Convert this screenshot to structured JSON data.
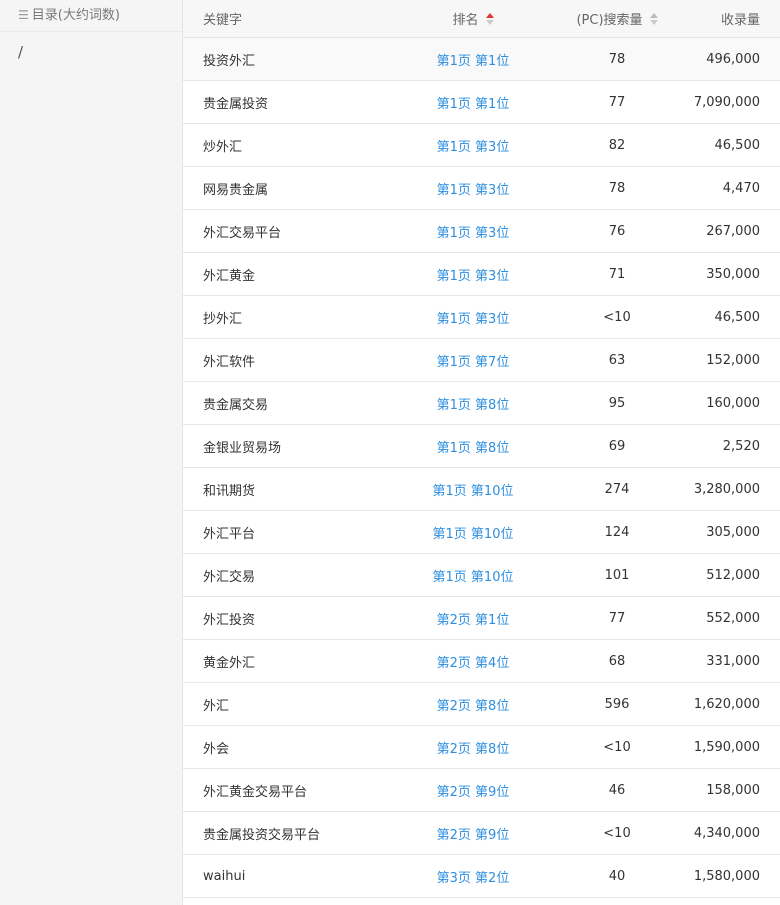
{
  "sidebar": {
    "title": "目录(大约词数)",
    "icon": "list-icon",
    "items": [
      {
        "label": "/"
      }
    ]
  },
  "table": {
    "headers": {
      "keyword": "关键字",
      "rank": "排名",
      "search": "(PC)搜索量",
      "indexed": "收录量"
    },
    "sort": {
      "column": "rank",
      "direction": "asc",
      "active_color": "#e33333"
    },
    "rows": [
      {
        "keyword": "投资外汇",
        "rank": "第1页 第1位",
        "search": "78",
        "indexed": "496,000"
      },
      {
        "keyword": "贵金属投资",
        "rank": "第1页 第1位",
        "search": "77",
        "indexed": "7,090,000"
      },
      {
        "keyword": "炒外汇",
        "rank": "第1页 第3位",
        "search": "82",
        "indexed": "46,500"
      },
      {
        "keyword": "网易贵金属",
        "rank": "第1页 第3位",
        "search": "78",
        "indexed": "4,470"
      },
      {
        "keyword": "外汇交易平台",
        "rank": "第1页 第3位",
        "search": "76",
        "indexed": "267,000"
      },
      {
        "keyword": "外汇黄金",
        "rank": "第1页 第3位",
        "search": "71",
        "indexed": "350,000"
      },
      {
        "keyword": "抄外汇",
        "rank": "第1页 第3位",
        "search": "<10",
        "indexed": "46,500"
      },
      {
        "keyword": "外汇软件",
        "rank": "第1页 第7位",
        "search": "63",
        "indexed": "152,000"
      },
      {
        "keyword": "贵金属交易",
        "rank": "第1页 第8位",
        "search": "95",
        "indexed": "160,000"
      },
      {
        "keyword": "金银业贸易场",
        "rank": "第1页 第8位",
        "search": "69",
        "indexed": "2,520"
      },
      {
        "keyword": "和讯期货",
        "rank": "第1页 第10位",
        "search": "274",
        "indexed": "3,280,000"
      },
      {
        "keyword": "外汇平台",
        "rank": "第1页 第10位",
        "search": "124",
        "indexed": "305,000"
      },
      {
        "keyword": "外汇交易",
        "rank": "第1页 第10位",
        "search": "101",
        "indexed": "512,000"
      },
      {
        "keyword": "外汇投资",
        "rank": "第2页 第1位",
        "search": "77",
        "indexed": "552,000"
      },
      {
        "keyword": "黄金外汇",
        "rank": "第2页 第4位",
        "search": "68",
        "indexed": "331,000"
      },
      {
        "keyword": "外汇",
        "rank": "第2页 第8位",
        "search": "596",
        "indexed": "1,620,000"
      },
      {
        "keyword": "外会",
        "rank": "第2页 第8位",
        "search": "<10",
        "indexed": "1,590,000"
      },
      {
        "keyword": "外汇黄金交易平台",
        "rank": "第2页 第9位",
        "search": "46",
        "indexed": "158,000"
      },
      {
        "keyword": "贵金属投资交易平台",
        "rank": "第2页 第9位",
        "search": "<10",
        "indexed": "4,340,000"
      },
      {
        "keyword": "waihui",
        "rank": "第3页 第2位",
        "search": "40",
        "indexed": "1,580,000"
      }
    ]
  }
}
